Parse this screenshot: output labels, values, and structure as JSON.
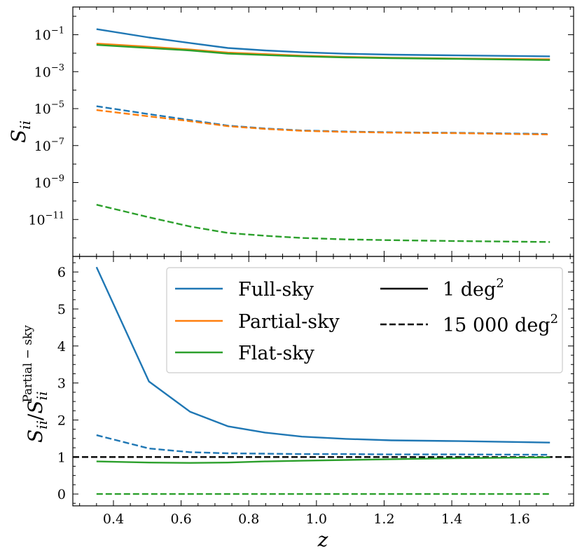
{
  "chart_data": [
    {
      "type": "line",
      "panel": "top",
      "yscale": "log",
      "ylabel": "S",
      "ylabel_subscript": "ii",
      "ylim_log10": [
        -13,
        0.5
      ],
      "xlim": [
        0.28,
        1.76
      ],
      "yticks": [
        {
          "base": "10",
          "exp": "−1",
          "value": -1
        },
        {
          "base": "10",
          "exp": "−3",
          "value": -3
        },
        {
          "base": "10",
          "exp": "−5",
          "value": -5
        },
        {
          "base": "10",
          "exp": "−7",
          "value": -7
        },
        {
          "base": "10",
          "exp": "−9",
          "value": -9
        },
        {
          "base": "10",
          "exp": "−11",
          "value": -11
        }
      ],
      "x": [
        0.35,
        0.505,
        0.627,
        0.738,
        0.848,
        0.957,
        1.087,
        1.221,
        1.42,
        1.69
      ],
      "series": [
        {
          "name": "Full-sky",
          "style": "solid",
          "color": "#1f77b4",
          "log10_values": [
            -0.7,
            -1.15,
            -1.45,
            -1.72,
            -1.85,
            -1.95,
            -2.03,
            -2.08,
            -2.12,
            -2.17
          ]
        },
        {
          "name": "Partial-sky",
          "style": "solid",
          "color": "#ff7f0e",
          "log10_values": [
            -1.48,
            -1.65,
            -1.8,
            -1.97,
            -2.05,
            -2.13,
            -2.2,
            -2.25,
            -2.29,
            -2.33
          ]
        },
        {
          "name": "Flat-sky",
          "style": "solid",
          "color": "#2ca02c",
          "log10_values": [
            -1.55,
            -1.72,
            -1.85,
            -2.02,
            -2.1,
            -2.17,
            -2.23,
            -2.27,
            -2.31,
            -2.37
          ]
        },
        {
          "name": "Full-sky",
          "style": "dashed",
          "color": "#1f77b4",
          "log10_values": [
            -4.87,
            -5.3,
            -5.62,
            -5.92,
            -6.07,
            -6.18,
            -6.24,
            -6.28,
            -6.31,
            -6.37
          ]
        },
        {
          "name": "Partial-sky",
          "style": "dashed",
          "color": "#ff7f0e",
          "log10_values": [
            -5.08,
            -5.42,
            -5.68,
            -5.95,
            -6.1,
            -6.2,
            -6.26,
            -6.3,
            -6.33,
            -6.4
          ]
        },
        {
          "name": "Flat-sky",
          "style": "dashed",
          "color": "#2ca02c",
          "log10_values": [
            -10.2,
            -10.88,
            -11.38,
            -11.73,
            -11.88,
            -12.0,
            -12.08,
            -12.12,
            -12.17,
            -12.22
          ]
        }
      ]
    },
    {
      "type": "line",
      "panel": "bottom",
      "ylabel": "S_ii / S_ii^Partial−sky",
      "ylabel_parts": {
        "num": "S",
        "num_sub": "ii",
        "slash": "/",
        "den": "S",
        "den_sub": "ii",
        "den_sup": "Partial − sky"
      },
      "xlabel": "z",
      "xlim": [
        0.28,
        1.76
      ],
      "ylim": [
        -0.32,
        6.42
      ],
      "xticks": [
        "0.4",
        "0.6",
        "0.8",
        "1.0",
        "1.2",
        "1.4",
        "1.6"
      ],
      "xtick_values": [
        0.4,
        0.6,
        0.8,
        1.0,
        1.2,
        1.4,
        1.6
      ],
      "yticks": [
        "0",
        "1",
        "2",
        "3",
        "4",
        "5",
        "6"
      ],
      "ytick_values": [
        0,
        1,
        2,
        3,
        4,
        5,
        6
      ],
      "reference_line": {
        "y": 1,
        "style": "dashed",
        "color": "#000000"
      },
      "x": [
        0.35,
        0.505,
        0.627,
        0.738,
        0.848,
        0.957,
        1.087,
        1.221,
        1.42,
        1.69
      ],
      "series": [
        {
          "name": "Full-sky",
          "style": "solid",
          "color": "#1f77b4",
          "values": [
            6.13,
            3.04,
            2.22,
            1.83,
            1.66,
            1.55,
            1.49,
            1.45,
            1.43,
            1.39
          ]
        },
        {
          "name": "Flat-sky",
          "style": "solid",
          "color": "#2ca02c",
          "values": [
            0.88,
            0.85,
            0.84,
            0.85,
            0.88,
            0.9,
            0.92,
            0.94,
            0.97,
            0.99
          ]
        },
        {
          "name": "Full-sky",
          "style": "dashed",
          "color": "#1f77b4",
          "values": [
            1.59,
            1.23,
            1.13,
            1.1,
            1.09,
            1.08,
            1.08,
            1.07,
            1.07,
            1.06
          ]
        },
        {
          "name": "Flat-sky",
          "style": "dashed",
          "color": "#2ca02c",
          "values": [
            0,
            0,
            0,
            0,
            0,
            0,
            0,
            0,
            0,
            0
          ]
        }
      ],
      "legend": {
        "placement": "upper-right",
        "entries": [
          {
            "label": "Full-sky",
            "color": "#1f77b4",
            "style": "solid"
          },
          {
            "label": "Partial-sky",
            "color": "#ff7f0e",
            "style": "solid"
          },
          {
            "label": "Flat-sky",
            "color": "#2ca02c",
            "style": "solid"
          },
          {
            "label": "1 deg",
            "sup": "2",
            "color": "#000000",
            "style": "solid"
          },
          {
            "label": "15 000 deg",
            "sup": "2",
            "color": "#000000",
            "style": "dashed"
          }
        ]
      }
    }
  ]
}
